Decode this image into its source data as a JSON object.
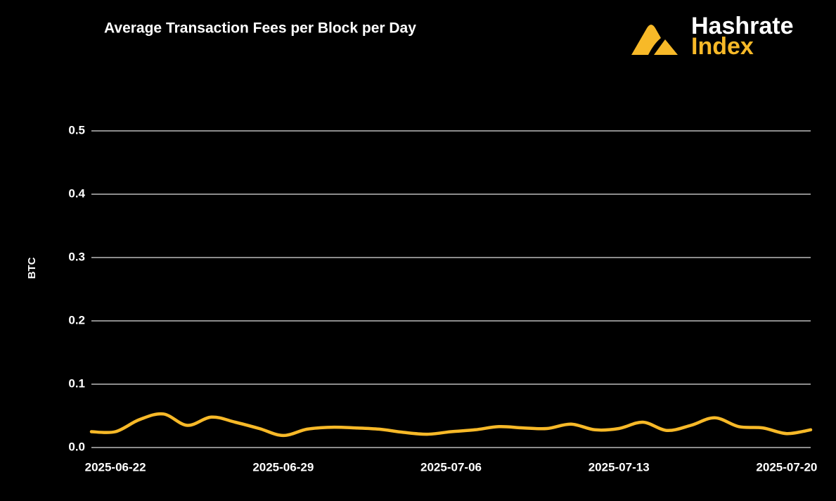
{
  "chart_data": {
    "type": "line",
    "title": "Average Transaction Fees per Block per Day",
    "logo": {
      "line1": "Hashrate",
      "line2": "Index"
    },
    "ylabel": "BTC",
    "x": [
      "2025-06-21",
      "2025-06-22",
      "2025-06-23",
      "2025-06-24",
      "2025-06-25",
      "2025-06-26",
      "2025-06-27",
      "2025-06-28",
      "2025-06-29",
      "2025-06-30",
      "2025-07-01",
      "2025-07-02",
      "2025-07-03",
      "2025-07-04",
      "2025-07-05",
      "2025-07-06",
      "2025-07-07",
      "2025-07-08",
      "2025-07-09",
      "2025-07-10",
      "2025-07-11",
      "2025-07-12",
      "2025-07-13",
      "2025-07-14",
      "2025-07-15",
      "2025-07-16",
      "2025-07-17",
      "2025-07-18",
      "2025-07-19",
      "2025-07-20",
      "2025-07-21"
    ],
    "series": [
      {
        "name": "Average Transaction Fees",
        "color": "#f7b928",
        "values": [
          0.025,
          0.025,
          0.044,
          0.053,
          0.035,
          0.048,
          0.04,
          0.03,
          0.019,
          0.029,
          0.032,
          0.031,
          0.029,
          0.024,
          0.021,
          0.025,
          0.028,
          0.033,
          0.031,
          0.03,
          0.037,
          0.028,
          0.03,
          0.04,
          0.027,
          0.035,
          0.047,
          0.033,
          0.031,
          0.022,
          0.028
        ]
      }
    ],
    "xticks": [
      "2025-06-22",
      "2025-06-29",
      "2025-07-06",
      "2025-07-13",
      "2025-07-20"
    ],
    "ylim": [
      0,
      0.5
    ],
    "yticks": [
      {
        "value": 0,
        "label": "0.0"
      },
      0.1,
      0.2,
      0.3,
      0.4,
      0.5
    ],
    "grid": true
  }
}
